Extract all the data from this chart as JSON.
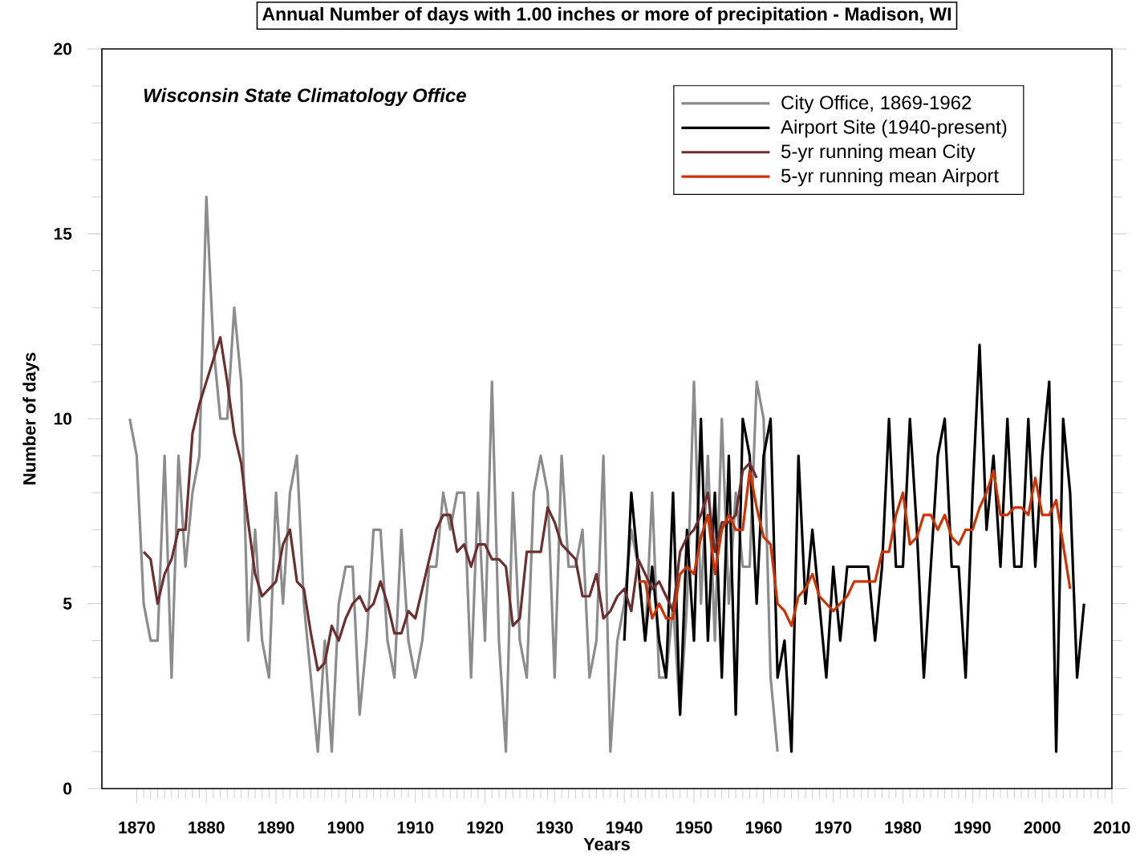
{
  "chart_data": {
    "type": "line",
    "title": "Annual Number of days with 1.00 inches or more of precipitation - Madison, WI",
    "xlabel": "Years",
    "ylabel": "Number of days",
    "annotations": [
      "Wisconsin State Climatology Office"
    ],
    "xlim": [
      1865,
      2010
    ],
    "ylim": [
      0,
      20
    ],
    "xticks": [
      1870,
      1880,
      1890,
      1900,
      1910,
      1920,
      1930,
      1940,
      1950,
      1960,
      1970,
      1980,
      1990,
      2000,
      2010
    ],
    "yticks": [
      0,
      5,
      10,
      15,
      20
    ],
    "legend": "top right",
    "series": [
      {
        "name": "City Office, 1869-1962",
        "color": "#8c8c8c",
        "x": [
          1869,
          1870,
          1871,
          1872,
          1873,
          1874,
          1875,
          1876,
          1877,
          1878,
          1879,
          1880,
          1881,
          1882,
          1883,
          1884,
          1885,
          1886,
          1887,
          1888,
          1889,
          1890,
          1891,
          1892,
          1893,
          1894,
          1895,
          1896,
          1897,
          1898,
          1899,
          1900,
          1901,
          1902,
          1903,
          1904,
          1905,
          1906,
          1907,
          1908,
          1909,
          1910,
          1911,
          1912,
          1913,
          1914,
          1915,
          1916,
          1917,
          1918,
          1919,
          1920,
          1921,
          1922,
          1923,
          1924,
          1925,
          1926,
          1927,
          1928,
          1929,
          1930,
          1931,
          1932,
          1933,
          1934,
          1935,
          1936,
          1937,
          1938,
          1939,
          1940,
          1941,
          1942,
          1943,
          1944,
          1945,
          1946,
          1947,
          1948,
          1949,
          1950,
          1951,
          1952,
          1953,
          1954,
          1955,
          1956,
          1957,
          1958,
          1959,
          1960,
          1961,
          1962
        ],
        "values": [
          10,
          9,
          5,
          4,
          4,
          9,
          3,
          9,
          6,
          8,
          9,
          16,
          12,
          10,
          10,
          13,
          11,
          4,
          7,
          4,
          3,
          8,
          5,
          8,
          9,
          5,
          3,
          1,
          4,
          1,
          5,
          6,
          6,
          2,
          4,
          7,
          7,
          4,
          3,
          7,
          4,
          3,
          4,
          6,
          6,
          8,
          7,
          8,
          8,
          3,
          8,
          4,
          11,
          4,
          1,
          8,
          4,
          3,
          8,
          9,
          8,
          3,
          9,
          6,
          6,
          7,
          3,
          4,
          9,
          1,
          4,
          5,
          7,
          6,
          4,
          8,
          3,
          3,
          5,
          2,
          5,
          11,
          5,
          9,
          4,
          10,
          5,
          8,
          6,
          6,
          11,
          10,
          3,
          1
        ]
      },
      {
        "name": "Airport Site (1940-present)",
        "color": "#000000",
        "x": [
          1940,
          1941,
          1942,
          1943,
          1944,
          1945,
          1946,
          1947,
          1948,
          1949,
          1950,
          1951,
          1952,
          1953,
          1954,
          1955,
          1956,
          1957,
          1958,
          1959,
          1960,
          1961,
          1962,
          1963,
          1964,
          1965,
          1966,
          1967,
          1968,
          1969,
          1970,
          1971,
          1972,
          1973,
          1974,
          1975,
          1976,
          1977,
          1978,
          1979,
          1980,
          1981,
          1982,
          1983,
          1984,
          1985,
          1986,
          1987,
          1988,
          1989,
          1990,
          1991,
          1992,
          1993,
          1994,
          1995,
          1996,
          1997,
          1998,
          1999,
          2000,
          2001,
          2002,
          2003,
          2004,
          2005,
          2006
        ],
        "values": [
          4,
          8,
          6,
          4,
          6,
          4,
          3,
          8,
          2,
          7,
          4,
          10,
          4,
          8,
          3,
          9,
          2,
          10,
          9,
          5,
          9,
          10,
          3,
          4,
          1,
          9,
          5,
          7,
          5,
          3,
          6,
          4,
          6,
          6,
          6,
          6,
          4,
          6,
          10,
          6,
          6,
          10,
          7,
          3,
          6,
          9,
          10,
          6,
          6,
          3,
          8,
          12,
          7,
          9,
          6,
          10,
          6,
          6,
          10,
          6,
          9,
          11,
          1,
          10,
          8,
          3,
          5
        ]
      },
      {
        "name": "5-yr running mean City",
        "color": "#6b2f2f",
        "x": [
          1871,
          1872,
          1873,
          1874,
          1875,
          1876,
          1877,
          1878,
          1879,
          1880,
          1881,
          1882,
          1883,
          1884,
          1885,
          1886,
          1887,
          1888,
          1889,
          1890,
          1891,
          1892,
          1893,
          1894,
          1895,
          1896,
          1897,
          1898,
          1899,
          1900,
          1901,
          1902,
          1903,
          1904,
          1905,
          1906,
          1907,
          1908,
          1909,
          1910,
          1911,
          1912,
          1913,
          1914,
          1915,
          1916,
          1917,
          1918,
          1919,
          1920,
          1921,
          1922,
          1923,
          1924,
          1925,
          1926,
          1927,
          1928,
          1929,
          1930,
          1931,
          1932,
          1933,
          1934,
          1935,
          1936,
          1937,
          1938,
          1939,
          1940,
          1941,
          1942,
          1943,
          1944,
          1945,
          1946,
          1947,
          1948,
          1949,
          1950,
          1951,
          1952,
          1953,
          1954,
          1955,
          1956,
          1957,
          1958,
          1959
        ],
        "values": [
          6.4,
          6.2,
          5.0,
          5.8,
          6.2,
          7.0,
          7.0,
          9.6,
          10.4,
          11.0,
          11.6,
          12.2,
          11.0,
          9.6,
          8.8,
          7.2,
          5.8,
          5.2,
          5.4,
          5.6,
          6.6,
          7.0,
          5.6,
          5.4,
          4.2,
          3.2,
          3.4,
          4.4,
          4.0,
          4.6,
          5.0,
          5.2,
          4.8,
          5.0,
          5.6,
          5.0,
          4.2,
          4.2,
          4.8,
          4.6,
          5.4,
          6.2,
          7.0,
          7.4,
          7.4,
          6.4,
          6.6,
          6.0,
          6.6,
          6.6,
          6.2,
          6.2,
          6.0,
          4.4,
          4.6,
          6.4,
          6.4,
          6.4,
          7.6,
          7.2,
          6.6,
          6.4,
          6.2,
          5.2,
          5.2,
          5.8,
          4.6,
          4.8,
          5.2,
          5.4,
          4.8,
          6.2,
          5.8,
          5.4,
          5.6,
          5.2,
          4.8,
          6.4,
          6.8,
          7.0,
          7.4,
          8.0,
          6.4,
          7.2,
          7.2,
          7.4,
          8.6,
          8.8,
          8.4
        ]
      },
      {
        "name": "5-yr running mean Airport",
        "color": "#cc3300",
        "x": [
          1942,
          1943,
          1944,
          1945,
          1946,
          1947,
          1948,
          1949,
          1950,
          1951,
          1952,
          1953,
          1954,
          1955,
          1956,
          1957,
          1958,
          1959,
          1960,
          1961,
          1962,
          1963,
          1964,
          1965,
          1966,
          1967,
          1968,
          1969,
          1970,
          1971,
          1972,
          1973,
          1974,
          1975,
          1976,
          1977,
          1978,
          1979,
          1980,
          1981,
          1982,
          1983,
          1984,
          1985,
          1986,
          1987,
          1988,
          1989,
          1990,
          1991,
          1992,
          1993,
          1994,
          1995,
          1996,
          1997,
          1998,
          1999,
          2000,
          2001,
          2002,
          2003,
          2004
        ],
        "values": [
          5.6,
          5.6,
          4.6,
          5.0,
          4.6,
          4.6,
          5.8,
          6.0,
          5.8,
          6.8,
          7.4,
          5.8,
          7.0,
          7.4,
          7.0,
          7.0,
          8.6,
          7.6,
          6.8,
          6.6,
          5.0,
          4.8,
          4.4,
          5.2,
          5.4,
          5.8,
          5.2,
          5.0,
          4.8,
          5.0,
          5.2,
          5.6,
          5.6,
          5.6,
          5.6,
          6.4,
          6.4,
          7.4,
          8.0,
          6.6,
          6.8,
          7.4,
          7.4,
          7.0,
          7.4,
          6.8,
          6.6,
          7.0,
          7.0,
          7.6,
          8.0,
          8.6,
          7.4,
          7.4,
          7.6,
          7.6,
          7.4,
          8.4,
          7.4,
          7.4,
          7.8,
          6.6,
          5.4
        ]
      }
    ]
  }
}
